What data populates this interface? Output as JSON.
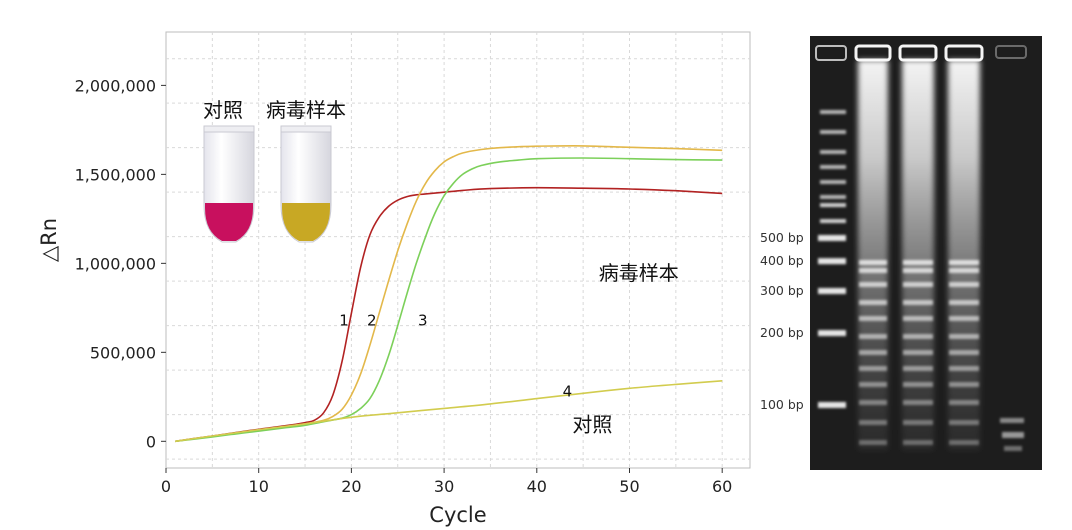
{
  "chart_data": {
    "type": "line",
    "xlabel": "Cycle",
    "ylabel": "△Rn",
    "xlim": [
      0,
      63
    ],
    "ylim": [
      -150000,
      2300000
    ],
    "x_ticks": [
      0,
      10,
      20,
      30,
      40,
      50,
      60
    ],
    "y_ticks": [
      0,
      500000,
      1000000,
      1500000,
      2000000
    ],
    "y_tick_labels": [
      "0",
      "500,000",
      "1,000,000",
      "1,500,000",
      "2,000,000"
    ],
    "grid": true,
    "series": [
      {
        "curve_label": "1",
        "color": "#b22222",
        "x": [
          1,
          3,
          5,
          7,
          9,
          11,
          13,
          15,
          16,
          17,
          18,
          19,
          20,
          21,
          22,
          23,
          24,
          25,
          26,
          27,
          28,
          30,
          32,
          35,
          40,
          45,
          50,
          55,
          60
        ],
        "y": [
          0,
          15000,
          30000,
          45000,
          60000,
          75000,
          88000,
          105000,
          118000,
          160000,
          260000,
          450000,
          720000,
          980000,
          1160000,
          1260000,
          1320000,
          1355000,
          1375000,
          1385000,
          1390000,
          1400000,
          1410000,
          1420000,
          1425000,
          1422000,
          1418000,
          1408000,
          1393000
        ]
      },
      {
        "curve_label": "2",
        "color": "#e3b84a",
        "x": [
          1,
          3,
          5,
          7,
          9,
          11,
          13,
          15,
          17,
          18,
          19,
          20,
          21,
          22,
          23,
          24,
          25,
          26,
          27,
          28,
          29,
          30,
          31,
          32,
          34,
          36,
          40,
          45,
          50,
          55,
          60
        ],
        "y": [
          0,
          14000,
          28000,
          42000,
          56000,
          70000,
          84000,
          98000,
          118000,
          140000,
          180000,
          260000,
          380000,
          540000,
          720000,
          900000,
          1070000,
          1220000,
          1350000,
          1450000,
          1520000,
          1570000,
          1600000,
          1620000,
          1640000,
          1650000,
          1658000,
          1660000,
          1652000,
          1645000,
          1635000
        ]
      },
      {
        "curve_label": "3",
        "color": "#7cd05a",
        "x": [
          1,
          3,
          5,
          7,
          9,
          11,
          13,
          15,
          17,
          19,
          20,
          21,
          22,
          23,
          24,
          25,
          26,
          27,
          28,
          29,
          30,
          31,
          32,
          33,
          34,
          36,
          38,
          40,
          45,
          50,
          55,
          60
        ],
        "y": [
          0,
          12000,
          25000,
          38000,
          51000,
          64000,
          77000,
          90000,
          110000,
          130000,
          150000,
          185000,
          240000,
          340000,
          480000,
          650000,
          830000,
          1000000,
          1150000,
          1280000,
          1380000,
          1450000,
          1500000,
          1530000,
          1550000,
          1570000,
          1580000,
          1588000,
          1592000,
          1588000,
          1583000,
          1580000
        ]
      },
      {
        "curve_label": "4",
        "color": "#d2cc4e",
        "x": [
          1,
          5,
          10,
          15,
          20,
          25,
          30,
          35,
          40,
          45,
          50,
          55,
          60
        ],
        "y": [
          0,
          30000,
          65000,
          98000,
          135000,
          160000,
          185000,
          210000,
          240000,
          270000,
          298000,
          320000,
          340000
        ]
      }
    ],
    "annotations": [
      {
        "text": "病毒样本",
        "x": 51,
        "y": 950000
      },
      {
        "text": "对照",
        "x": 46,
        "y": 100000
      }
    ],
    "inset": {
      "tube_labels": [
        "对照",
        "病毒样本"
      ],
      "tube_colors": [
        "#c8105e",
        "#c8a824"
      ]
    }
  },
  "gel": {
    "ladder_labels": [
      "500 bp",
      "400 bp",
      "300 bp",
      "200 bp",
      "100 bp"
    ],
    "ladder_sizes": [
      500,
      400,
      300,
      200,
      100
    ]
  }
}
